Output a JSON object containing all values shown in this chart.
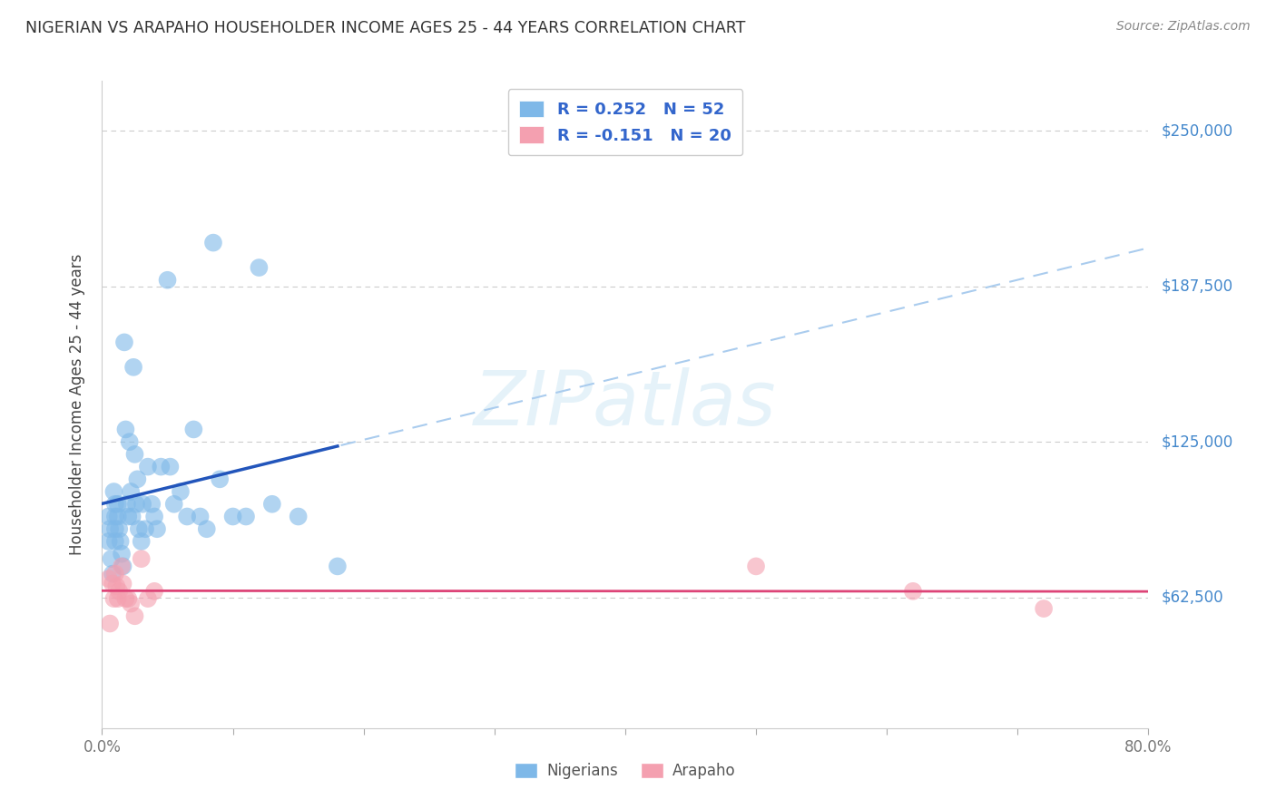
{
  "title": "NIGERIAN VS ARAPAHO HOUSEHOLDER INCOME AGES 25 - 44 YEARS CORRELATION CHART",
  "source": "Source: ZipAtlas.com",
  "ylabel_label": "Householder Income Ages 25 - 44 years",
  "ylabel_ticks": [
    "$62,500",
    "$125,000",
    "$187,500",
    "$250,000"
  ],
  "ylabel_values": [
    62500,
    125000,
    187500,
    250000
  ],
  "xmin": 0.0,
  "xmax": 0.8,
  "ymin": 10000,
  "ymax": 270000,
  "watermark_text": "ZIPatlas",
  "legend_label1": "Nigerians",
  "legend_label2": "Arapaho",
  "R_nigerian": 0.252,
  "N_nigerian": 52,
  "R_arapaho": -0.151,
  "N_arapaho": 20,
  "nigerian_scatter_x": [
    0.005,
    0.005,
    0.006,
    0.007,
    0.008,
    0.009,
    0.01,
    0.01,
    0.01,
    0.01,
    0.012,
    0.012,
    0.013,
    0.014,
    0.015,
    0.016,
    0.017,
    0.018,
    0.019,
    0.02,
    0.021,
    0.022,
    0.023,
    0.024,
    0.025,
    0.026,
    0.027,
    0.028,
    0.03,
    0.031,
    0.033,
    0.035,
    0.038,
    0.04,
    0.042,
    0.045,
    0.05,
    0.052,
    0.055,
    0.06,
    0.065,
    0.07,
    0.075,
    0.08,
    0.085,
    0.09,
    0.1,
    0.11,
    0.12,
    0.13,
    0.15,
    0.18
  ],
  "nigerian_scatter_y": [
    95000,
    85000,
    90000,
    78000,
    72000,
    105000,
    100000,
    95000,
    90000,
    85000,
    100000,
    95000,
    90000,
    85000,
    80000,
    75000,
    165000,
    130000,
    100000,
    95000,
    125000,
    105000,
    95000,
    155000,
    120000,
    100000,
    110000,
    90000,
    85000,
    100000,
    90000,
    115000,
    100000,
    95000,
    90000,
    115000,
    190000,
    115000,
    100000,
    105000,
    95000,
    130000,
    95000,
    90000,
    205000,
    110000,
    95000,
    95000,
    195000,
    100000,
    95000,
    75000
  ],
  "arapaho_scatter_x": [
    0.005,
    0.006,
    0.008,
    0.009,
    0.01,
    0.011,
    0.012,
    0.013,
    0.015,
    0.016,
    0.018,
    0.02,
    0.022,
    0.025,
    0.03,
    0.035,
    0.04,
    0.5,
    0.62,
    0.72
  ],
  "arapaho_scatter_y": [
    70000,
    52000,
    68000,
    62000,
    72000,
    67000,
    62000,
    65000,
    75000,
    68000,
    62000,
    62000,
    60000,
    55000,
    78000,
    62000,
    65000,
    75000,
    65000,
    58000
  ],
  "nigerian_color": "#7eb8e8",
  "arapaho_color": "#f4a0b0",
  "nigerian_line_color": "#2255bb",
  "arapaho_line_color": "#dd4477",
  "dashed_line_color": "#aaccee",
  "grid_color": "#cccccc",
  "title_color": "#333333",
  "axis_label_color": "#444444",
  "right_label_color": "#4488cc",
  "tick_label_color": "#777777"
}
